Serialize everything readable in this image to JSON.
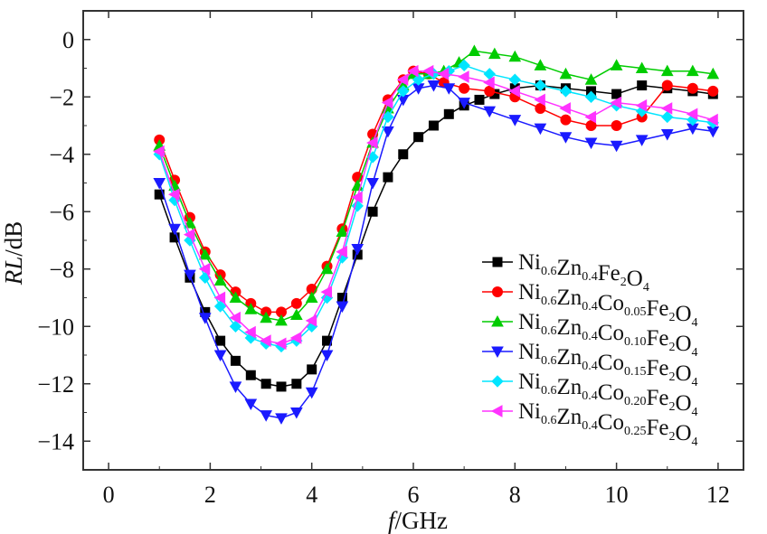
{
  "chart_data": {
    "type": "line",
    "title": "",
    "xlabel_italic": "f",
    "xlabel_unit": "/GHz",
    "ylabel_italic": "RL",
    "ylabel_unit": "/dB",
    "xlim": [
      -0.5,
      12.5
    ],
    "ylim": [
      -15,
      1
    ],
    "xticks": [
      0,
      2,
      4,
      6,
      8,
      10,
      12
    ],
    "yticks": [
      0,
      -2,
      -4,
      -6,
      -8,
      -10,
      -12,
      -14
    ],
    "ytick_labels": [
      "0",
      "−2",
      "−4",
      "−6",
      "−8",
      "−10",
      "−12",
      "−14"
    ],
    "grid": false,
    "legend_position": "right",
    "series": [
      {
        "name": "Ni0.6Zn0.4Fe2O4",
        "name_parts": [
          [
            "Ni",
            ""
          ],
          [
            "",
            "0.6"
          ],
          [
            "Zn",
            ""
          ],
          [
            "",
            "0.4"
          ],
          [
            "Fe",
            ""
          ],
          [
            "",
            "2"
          ],
          [
            "O",
            ""
          ],
          [
            "",
            "4"
          ]
        ],
        "color": "#000000",
        "marker": "square",
        "x": [
          1.0,
          1.3,
          1.6,
          1.9,
          2.2,
          2.5,
          2.8,
          3.1,
          3.4,
          3.7,
          4.0,
          4.3,
          4.6,
          4.9,
          5.2,
          5.5,
          5.8,
          6.1,
          6.4,
          6.7,
          7.0,
          7.3,
          7.6,
          8.0,
          8.5,
          9.0,
          9.5,
          10.0,
          10.5,
          11.0,
          11.5,
          11.9
        ],
        "y": [
          -5.4,
          -6.9,
          -8.3,
          -9.5,
          -10.5,
          -11.2,
          -11.7,
          -12.0,
          -12.1,
          -12.0,
          -11.5,
          -10.5,
          -9.0,
          -7.5,
          -6.0,
          -4.8,
          -4.0,
          -3.4,
          -3.0,
          -2.6,
          -2.3,
          -2.1,
          -1.9,
          -1.7,
          -1.6,
          -1.7,
          -1.8,
          -1.9,
          -1.6,
          -1.7,
          -1.8,
          -1.9
        ]
      },
      {
        "name": "Ni0.6Zn0.4Co0.05Fe2O4",
        "name_parts": [
          [
            "Ni",
            ""
          ],
          [
            "",
            "0.6"
          ],
          [
            "Zn",
            ""
          ],
          [
            "",
            "0.4"
          ],
          [
            "Co",
            ""
          ],
          [
            "",
            "0.05"
          ],
          [
            "Fe",
            ""
          ],
          [
            "",
            "2"
          ],
          [
            "O",
            ""
          ],
          [
            "",
            "4"
          ]
        ],
        "color": "#ff0000",
        "marker": "circle",
        "x": [
          1.0,
          1.3,
          1.6,
          1.9,
          2.2,
          2.5,
          2.8,
          3.1,
          3.4,
          3.7,
          4.0,
          4.3,
          4.6,
          4.9,
          5.2,
          5.5,
          5.8,
          6.0,
          6.3,
          6.6,
          7.0,
          7.5,
          8.0,
          8.5,
          9.0,
          9.5,
          10.0,
          10.5,
          11.0,
          11.5,
          11.9
        ],
        "y": [
          -3.5,
          -4.9,
          -6.2,
          -7.4,
          -8.2,
          -8.8,
          -9.2,
          -9.5,
          -9.5,
          -9.2,
          -8.7,
          -7.9,
          -6.6,
          -4.8,
          -3.3,
          -2.1,
          -1.4,
          -1.1,
          -1.2,
          -1.5,
          -1.7,
          -1.8,
          -2.0,
          -2.4,
          -2.8,
          -3.0,
          -3.0,
          -2.7,
          -1.6,
          -1.7,
          -1.8
        ]
      },
      {
        "name": "Ni0.6Zn0.4Co0.10Fe2O4",
        "name_parts": [
          [
            "Ni",
            ""
          ],
          [
            "",
            "0.6"
          ],
          [
            "Zn",
            ""
          ],
          [
            "",
            "0.4"
          ],
          [
            "Co",
            ""
          ],
          [
            "",
            "0.10"
          ],
          [
            "Fe",
            ""
          ],
          [
            "",
            "2"
          ],
          [
            "O",
            ""
          ],
          [
            "",
            "4"
          ]
        ],
        "color": "#00cc00",
        "marker": "triangle-up",
        "x": [
          1.0,
          1.3,
          1.6,
          1.9,
          2.2,
          2.5,
          2.8,
          3.1,
          3.4,
          3.7,
          4.0,
          4.3,
          4.6,
          4.9,
          5.2,
          5.5,
          5.8,
          6.0,
          6.3,
          6.6,
          6.9,
          7.2,
          7.6,
          8.0,
          8.5,
          9.0,
          9.5,
          10.0,
          10.5,
          11.0,
          11.5,
          11.9
        ],
        "y": [
          -3.7,
          -5.1,
          -6.4,
          -7.5,
          -8.4,
          -9.0,
          -9.4,
          -9.7,
          -9.8,
          -9.6,
          -9.0,
          -8.0,
          -6.7,
          -5.1,
          -3.6,
          -2.4,
          -1.6,
          -1.2,
          -1.2,
          -1.1,
          -0.8,
          -0.4,
          -0.5,
          -0.6,
          -0.9,
          -1.2,
          -1.4,
          -0.9,
          -1.0,
          -1.1,
          -1.1,
          -1.2
        ]
      },
      {
        "name": "Ni0.6Zn0.4Co0.15Fe2O4",
        "name_parts": [
          [
            "Ni",
            ""
          ],
          [
            "",
            "0.6"
          ],
          [
            "Zn",
            ""
          ],
          [
            "",
            "0.4"
          ],
          [
            "Co",
            ""
          ],
          [
            "",
            "0.15"
          ],
          [
            "Fe",
            ""
          ],
          [
            "",
            "2"
          ],
          [
            "O",
            ""
          ],
          [
            "",
            "4"
          ]
        ],
        "color": "#1a1aff",
        "marker": "triangle-down",
        "x": [
          1.0,
          1.3,
          1.6,
          1.9,
          2.2,
          2.5,
          2.8,
          3.1,
          3.4,
          3.7,
          4.0,
          4.3,
          4.6,
          4.9,
          5.2,
          5.5,
          5.8,
          6.1,
          6.4,
          6.7,
          7.0,
          7.5,
          8.0,
          8.5,
          9.0,
          9.5,
          10.0,
          10.5,
          11.0,
          11.5,
          11.9
        ],
        "y": [
          -5.0,
          -6.6,
          -8.2,
          -9.7,
          -11.0,
          -12.1,
          -12.7,
          -13.1,
          -13.2,
          -13.0,
          -12.3,
          -11.0,
          -9.3,
          -7.3,
          -5.0,
          -3.2,
          -2.1,
          -1.7,
          -1.6,
          -1.7,
          -2.2,
          -2.5,
          -2.8,
          -3.1,
          -3.4,
          -3.6,
          -3.7,
          -3.5,
          -3.3,
          -3.1,
          -3.2
        ]
      },
      {
        "name": "Ni0.6Zn0.4Co0.20Fe2O4",
        "name_parts": [
          [
            "Ni",
            ""
          ],
          [
            "",
            "0.6"
          ],
          [
            "Zn",
            ""
          ],
          [
            "",
            "0.4"
          ],
          [
            "Co",
            ""
          ],
          [
            "",
            "0.20"
          ],
          [
            "Fe",
            ""
          ],
          [
            "",
            "2"
          ],
          [
            "O",
            ""
          ],
          [
            "",
            "4"
          ]
        ],
        "color": "#00e5ff",
        "marker": "diamond",
        "x": [
          1.0,
          1.3,
          1.6,
          1.9,
          2.2,
          2.5,
          2.8,
          3.1,
          3.4,
          3.7,
          4.0,
          4.3,
          4.6,
          4.9,
          5.2,
          5.5,
          5.8,
          6.1,
          6.4,
          6.7,
          7.0,
          7.5,
          8.0,
          8.5,
          9.0,
          9.5,
          10.0,
          10.5,
          11.0,
          11.5,
          11.9
        ],
        "y": [
          -4.0,
          -5.6,
          -7.0,
          -8.3,
          -9.3,
          -10.0,
          -10.4,
          -10.6,
          -10.7,
          -10.5,
          -10.0,
          -9.0,
          -7.6,
          -5.8,
          -4.1,
          -2.7,
          -1.8,
          -1.4,
          -1.2,
          -1.1,
          -0.9,
          -1.2,
          -1.4,
          -1.6,
          -1.8,
          -2.0,
          -2.3,
          -2.5,
          -2.7,
          -2.8,
          -2.9
        ]
      },
      {
        "name": "Ni0.6Zn0.4Co0.25Fe2O4",
        "name_parts": [
          [
            "Ni",
            ""
          ],
          [
            "",
            "0.6"
          ],
          [
            "Zn",
            ""
          ],
          [
            "",
            "0.4"
          ],
          [
            "Co",
            ""
          ],
          [
            "",
            "0.25"
          ],
          [
            "Fe",
            ""
          ],
          [
            "",
            "2"
          ],
          [
            "O",
            ""
          ],
          [
            "",
            "4"
          ]
        ],
        "color": "#ff33ff",
        "marker": "triangle-left",
        "x": [
          1.0,
          1.3,
          1.6,
          1.9,
          2.2,
          2.5,
          2.8,
          3.1,
          3.4,
          3.7,
          4.0,
          4.3,
          4.6,
          4.9,
          5.2,
          5.5,
          5.8,
          6.0,
          6.3,
          6.6,
          7.0,
          7.5,
          8.0,
          8.5,
          9.0,
          9.5,
          10.0,
          10.5,
          11.0,
          11.5,
          11.9
        ],
        "y": [
          -3.9,
          -5.4,
          -6.8,
          -8.0,
          -9.0,
          -9.7,
          -10.2,
          -10.5,
          -10.6,
          -10.4,
          -9.8,
          -8.8,
          -7.4,
          -5.5,
          -3.6,
          -2.2,
          -1.4,
          -1.1,
          -1.1,
          -1.2,
          -1.3,
          -1.5,
          -1.8,
          -2.1,
          -2.4,
          -2.7,
          -2.2,
          -2.3,
          -2.4,
          -2.6,
          -2.8
        ]
      }
    ]
  }
}
